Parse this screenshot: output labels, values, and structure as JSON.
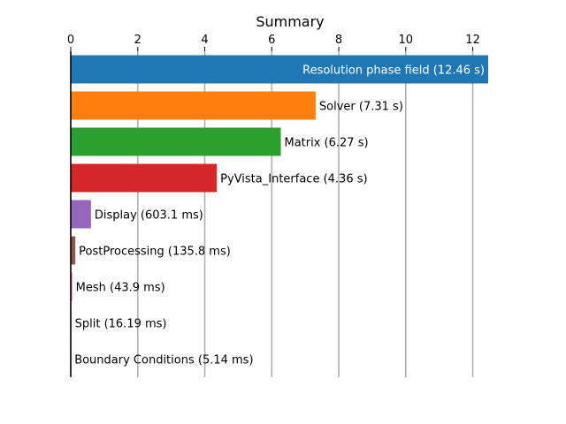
{
  "chart_data": {
    "type": "bar",
    "orientation": "horizontal",
    "title": "Summary",
    "xlabel": "",
    "ylabel": "",
    "xlim": [
      0,
      12.46
    ],
    "x_ticks": [
      0,
      2,
      4,
      6,
      8,
      10,
      12
    ],
    "grid": "vertical",
    "bars": [
      {
        "name": "Resolution phase field",
        "value": 12.46,
        "label": "Resolution phase field (12.46 s)",
        "color": "#1f77b4",
        "label_inside": true
      },
      {
        "name": "Solver",
        "value": 7.31,
        "label": "Solver (7.31 s)",
        "color": "#ff7f0e",
        "label_inside": false
      },
      {
        "name": "Matrix",
        "value": 6.27,
        "label": "Matrix (6.27 s)",
        "color": "#2ca02c",
        "label_inside": false
      },
      {
        "name": "PyVista_Interface",
        "value": 4.36,
        "label": "PyVista_Interface (4.36 s)",
        "color": "#d62728",
        "label_inside": false
      },
      {
        "name": "Display",
        "value": 0.6031,
        "label": "Display (603.1 ms)",
        "color": "#9467bd",
        "label_inside": false
      },
      {
        "name": "PostProcessing",
        "value": 0.1358,
        "label": "PostProcessing (135.8 ms)",
        "color": "#8c564b",
        "label_inside": false
      },
      {
        "name": "Mesh",
        "value": 0.0439,
        "label": "Mesh (43.9 ms)",
        "color": "#e377c2",
        "label_inside": false
      },
      {
        "name": "Split",
        "value": 0.01619,
        "label": "Split (16.19 ms)",
        "color": "#7f7f7f",
        "label_inside": false
      },
      {
        "name": "Boundary Conditions",
        "value": 0.00514,
        "label": "Boundary Conditions (5.14 ms)",
        "color": "#bcbd22",
        "label_inside": false
      }
    ]
  }
}
